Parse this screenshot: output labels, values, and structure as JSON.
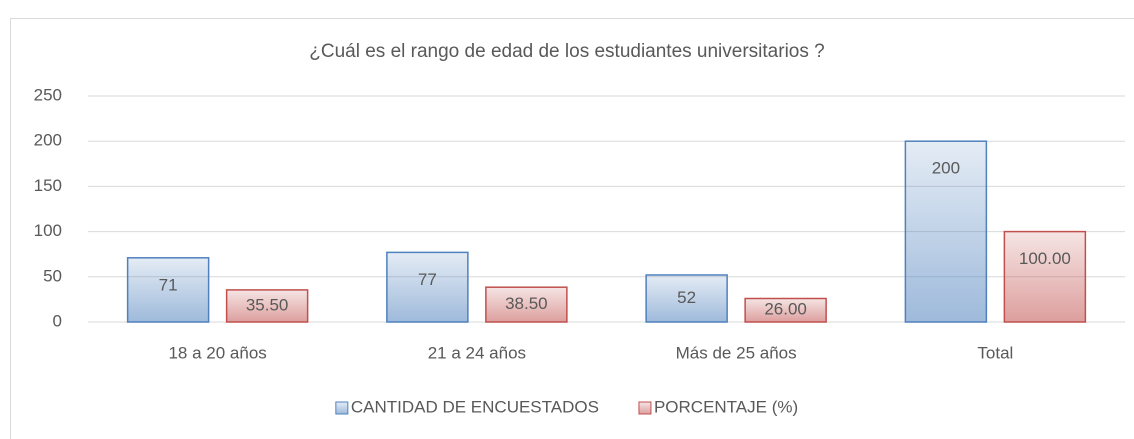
{
  "chart_data": {
    "type": "bar",
    "title": "¿Cuál es el rango de edad de los estudiantes universitarios ?",
    "categories": [
      "18 a 20 años",
      "21 a 24 años",
      "Más de 25 años",
      "Total"
    ],
    "series": [
      {
        "name": "CANTIDAD DE ENCUESTADOS",
        "color": "#4f81bd",
        "values": [
          71,
          77,
          52,
          200
        ]
      },
      {
        "name": "PORCENTAJE (%)",
        "color": "#c0504d",
        "values": [
          35.5,
          38.5,
          26,
          100
        ],
        "value_labels": [
          "35.50",
          "38.50",
          "26.00",
          "100.00"
        ]
      }
    ],
    "ylim": [
      0,
      250
    ],
    "yticks": [
      0,
      50,
      100,
      150,
      200,
      250
    ],
    "grid": true,
    "legend": "bottom"
  }
}
